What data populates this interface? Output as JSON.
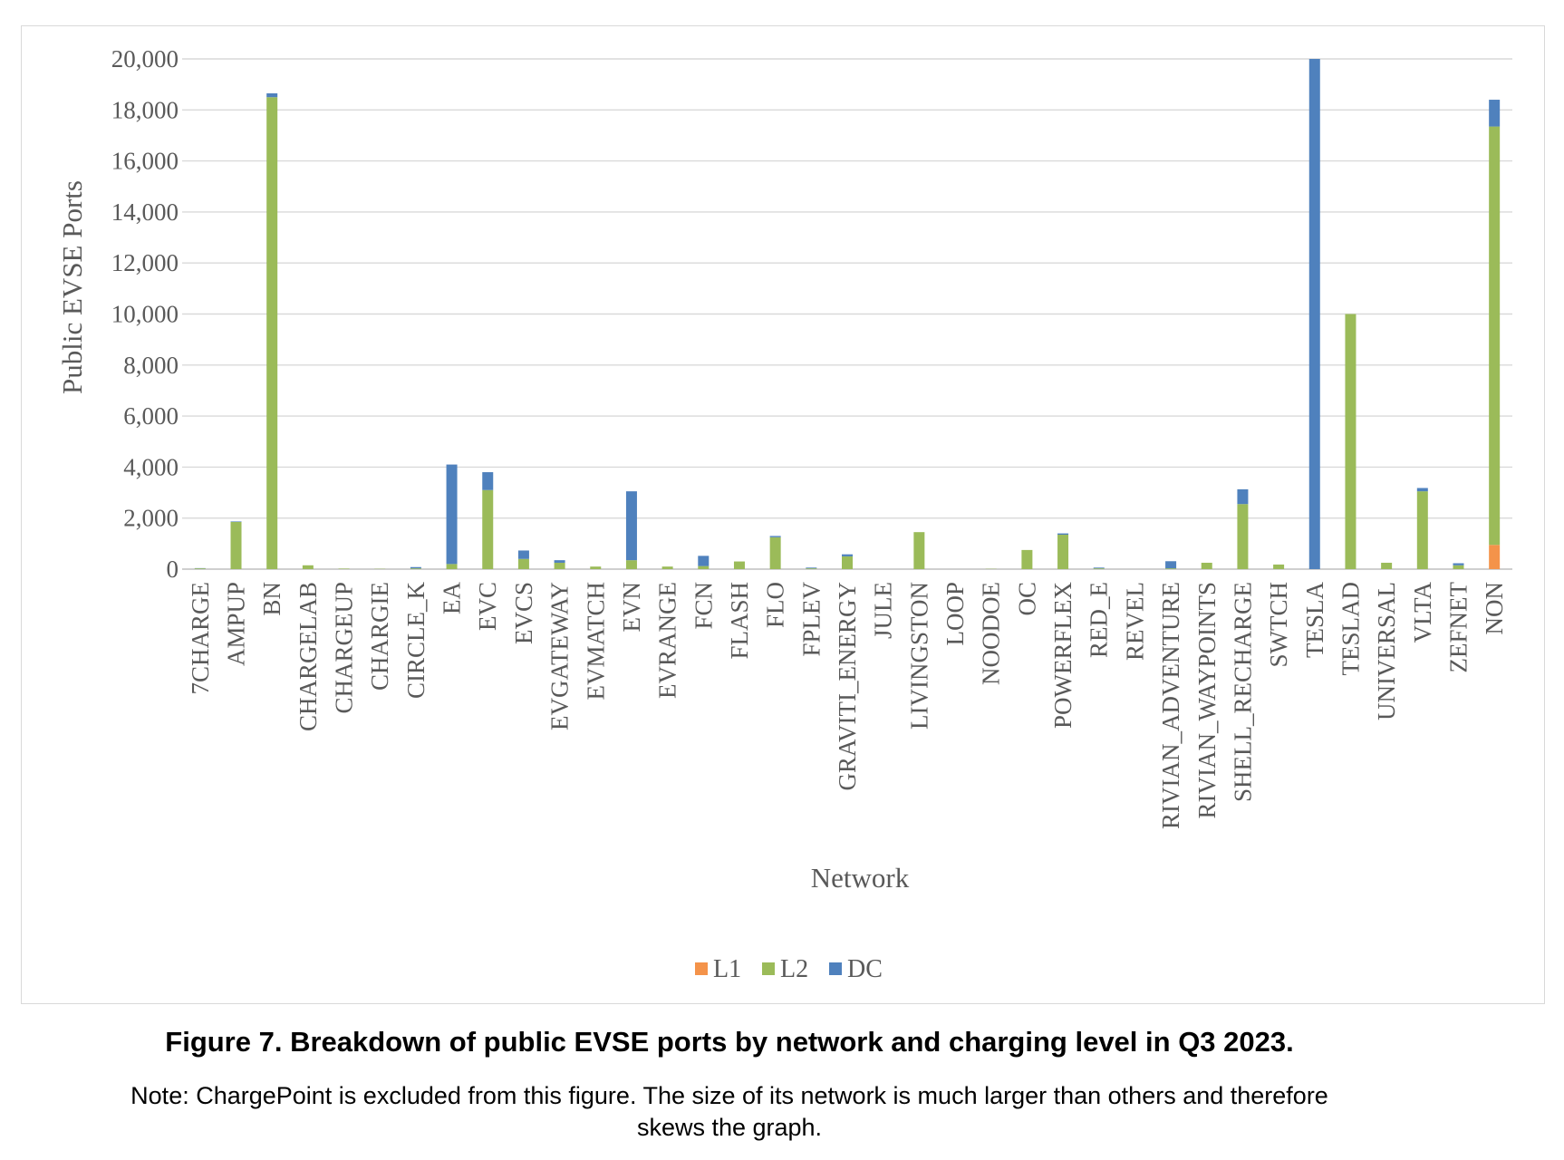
{
  "chart_data": {
    "type": "bar",
    "stacked": true,
    "title": "",
    "xlabel": "Network",
    "ylabel": "Public EVSE Ports",
    "ylim": [
      0,
      20000
    ],
    "yticks": [
      "0",
      "2,000",
      "4,000",
      "6,000",
      "8,000",
      "10,000",
      "12,000",
      "14,000",
      "16,000",
      "18,000",
      "20,000"
    ],
    "grid": true,
    "legend_position": "bottom",
    "categories": [
      "7CHARGE",
      "AMPUP",
      "BN",
      "CHARGELAB",
      "CHARGEUP",
      "CHARGIE",
      "CIRCLE_K",
      "EA",
      "EVC",
      "EVCS",
      "EVGATEWAY",
      "EVMATCH",
      "EVN",
      "EVRANGE",
      "FCN",
      "FLASH",
      "FLO",
      "FPLEV",
      "GRAVITI_ENERGY",
      "JULE",
      "LIVINGSTON",
      "LOOP",
      "NOODOE",
      "OC",
      "POWERFLEX",
      "RED_E",
      "REVEL",
      "RIVIAN_ADVENTURE",
      "RIVIAN_WAYPOINTS",
      "SHELL_RECHARGE",
      "SWTCH",
      "TESLA",
      "TESLAD",
      "UNIVERSAL",
      "VLTA",
      "ZEFNET",
      "NON"
    ],
    "series": [
      {
        "name": "L1",
        "color": "#f4934a",
        "values": [
          0,
          0,
          0,
          0,
          0,
          0,
          0,
          0,
          0,
          0,
          0,
          0,
          0,
          0,
          0,
          0,
          0,
          0,
          0,
          0,
          0,
          0,
          0,
          0,
          0,
          0,
          0,
          0,
          0,
          0,
          0,
          0,
          0,
          0,
          0,
          0,
          950
        ]
      },
      {
        "name": "L2",
        "color": "#9bbb59",
        "values": [
          30,
          1850,
          18500,
          150,
          20,
          10,
          30,
          200,
          3100,
          400,
          250,
          100,
          350,
          100,
          120,
          300,
          1250,
          30,
          500,
          0,
          1450,
          0,
          10,
          750,
          1350,
          30,
          0,
          30,
          250,
          2550,
          180,
          0,
          10000,
          250,
          3050,
          150,
          16400
        ]
      },
      {
        "name": "DC",
        "color": "#4f81bd",
        "values": [
          10,
          20,
          150,
          0,
          0,
          0,
          50,
          3900,
          700,
          330,
          100,
          0,
          2700,
          0,
          400,
          0,
          50,
          30,
          80,
          0,
          0,
          0,
          0,
          0,
          50,
          30,
          0,
          280,
          0,
          580,
          0,
          20000,
          0,
          0,
          130,
          80,
          1050
        ]
      }
    ]
  },
  "figure": {
    "caption": "Figure 7. Breakdown of public EVSE ports by network and charging level in Q3 2023.",
    "note_line1": "Note: ChargePoint is excluded from this figure. The size of its network is much larger than others and therefore",
    "note_line2": "skews the graph."
  }
}
